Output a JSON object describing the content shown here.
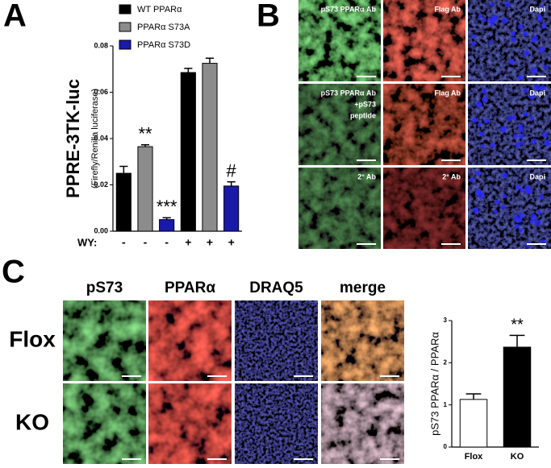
{
  "panel_labels": [
    "A",
    "B",
    "C"
  ],
  "chart_data": [
    {
      "type": "bar",
      "y_label": "PPRE-3TK-luc",
      "y_sublabel": "(Firefly/Renilla luciferase)",
      "x_label": "WY:",
      "categories": [
        "-",
        "-",
        "-",
        "+",
        "+",
        "+"
      ],
      "series": [
        {
          "name": "WT PPARα",
          "color": "#000000",
          "values": [
            0.025,
            null,
            null,
            0.0685,
            null,
            null
          ],
          "errors": [
            0.003,
            null,
            null,
            0.0018,
            null,
            null
          ]
        },
        {
          "name": "PPARα S73A",
          "color": "#8c8c8c",
          "values": [
            null,
            0.0365,
            null,
            null,
            0.0725,
            null
          ],
          "errors": [
            null,
            0.0008,
            null,
            null,
            0.0022,
            null
          ]
        },
        {
          "name": "PPARα S73D",
          "color": "#1a1aa8",
          "values": [
            null,
            null,
            0.005,
            null,
            null,
            0.0195
          ],
          "errors": [
            null,
            null,
            0.0008,
            null,
            null,
            0.0018
          ]
        }
      ],
      "annotations": [
        null,
        "**",
        "***",
        null,
        null,
        "#"
      ],
      "ylim": [
        0,
        0.08
      ],
      "yticks": [
        {
          "value": 0,
          "label": "0.00"
        },
        0.02,
        0.04,
        0.06,
        0.08
      ]
    },
    {
      "type": "bar",
      "y_label": "pS73 PPARα / PPARα",
      "categories": [
        "Flox",
        "KO"
      ],
      "values": [
        1.13,
        2.37
      ],
      "errors": [
        0.13,
        0.28
      ],
      "colors": [
        "#ffffff",
        "#000000"
      ],
      "annotations": [
        null,
        "**"
      ],
      "ylim": [
        0,
        3
      ],
      "yticks": [
        0,
        1,
        2,
        3
      ]
    }
  ],
  "panel_b": {
    "rows": [
      [
        [
          "pS73 PPARα Ab"
        ],
        [
          "Flag Ab"
        ],
        [
          "Dapi"
        ]
      ],
      [
        [
          "pS73 PPARα Ab",
          "+pS73",
          "peptide"
        ],
        [
          "Flag Ab"
        ],
        [
          "Dapi"
        ]
      ],
      [
        [
          "2° Ab"
        ],
        [
          "2° Ab"
        ],
        [
          "Dapi"
        ]
      ]
    ]
  },
  "panel_c": {
    "columns": [
      "pS73",
      "PPARα",
      "DRAQ5",
      "merge"
    ],
    "rows": [
      "Flox",
      "KO"
    ]
  }
}
